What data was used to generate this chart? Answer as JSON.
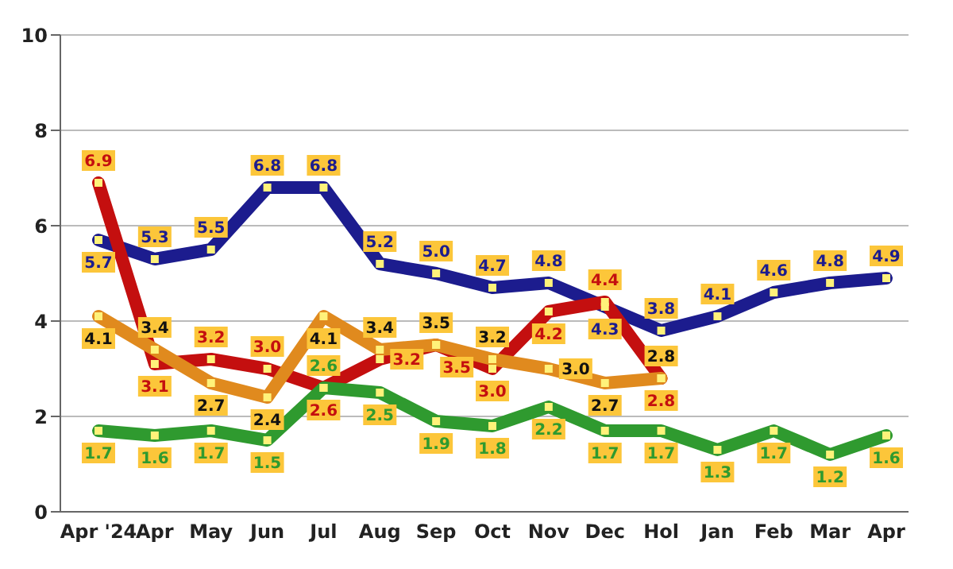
{
  "chart_data": {
    "type": "line",
    "categories": [
      "Apr '24",
      "Apr",
      "May",
      "Jun",
      "Jul",
      "Aug",
      "Sep",
      "Oct",
      "Nov",
      "Dec",
      "Hol",
      "Jan",
      "Feb",
      "Mar",
      "Apr"
    ],
    "series": [
      {
        "color": "#1c1c8e",
        "values": [
          5.7,
          5.3,
          5.5,
          6.8,
          6.8,
          5.2,
          5.0,
          4.7,
          4.8,
          4.3,
          3.8,
          4.1,
          4.6,
          4.8,
          4.9
        ],
        "value_labels": [
          "5.7",
          "5.3",
          "5.5",
          "6.8",
          "6.8",
          "5.2",
          "5.0",
          "4.7",
          "4.8",
          "4.3",
          "3.8",
          "4.1",
          "4.6",
          "4.8",
          "4.9"
        ]
      },
      {
        "color": "#c40f0f",
        "values": [
          6.9,
          3.1,
          3.2,
          3.0,
          2.6,
          3.2,
          3.5,
          3.0,
          4.2,
          4.4,
          2.8,
          null,
          null,
          null,
          null
        ],
        "value_labels": [
          "6.9",
          "3.1",
          "3.2",
          "3.0",
          "2.6",
          "3.2",
          "3.5",
          "3.0",
          "4.2",
          "4.4",
          "2.8",
          null,
          null,
          null,
          null
        ]
      },
      {
        "color": "#e08a1e",
        "values": [
          4.1,
          3.4,
          2.7,
          2.4,
          4.1,
          3.4,
          3.5,
          3.2,
          3.0,
          2.7,
          2.8,
          null,
          null,
          null,
          null
        ],
        "value_labels": [
          "4.1",
          "3.4",
          "2.7",
          "2.4",
          "4.1",
          "3.4",
          "3.5",
          "3.2",
          "3.0",
          "2.7",
          "2.8",
          null,
          null,
          null,
          null
        ]
      },
      {
        "color": "#2f9a2f",
        "values": [
          1.7,
          1.6,
          1.7,
          1.5,
          2.6,
          2.5,
          1.9,
          1.8,
          2.2,
          1.7,
          1.7,
          1.3,
          1.7,
          1.2,
          1.6
        ],
        "value_labels": [
          "1.7",
          "1.6",
          "1.7",
          "1.5",
          "2.6",
          "2.5",
          "1.9",
          "1.8",
          "2.2",
          "1.7",
          "1.7",
          "1.3",
          "1.7",
          "1.2",
          "1.6"
        ]
      }
    ],
    "ylim": [
      0,
      10
    ],
    "yticks": [
      0,
      2,
      4,
      6,
      8,
      10
    ],
    "grid": "y",
    "marker": "square",
    "line_style": "solid"
  }
}
